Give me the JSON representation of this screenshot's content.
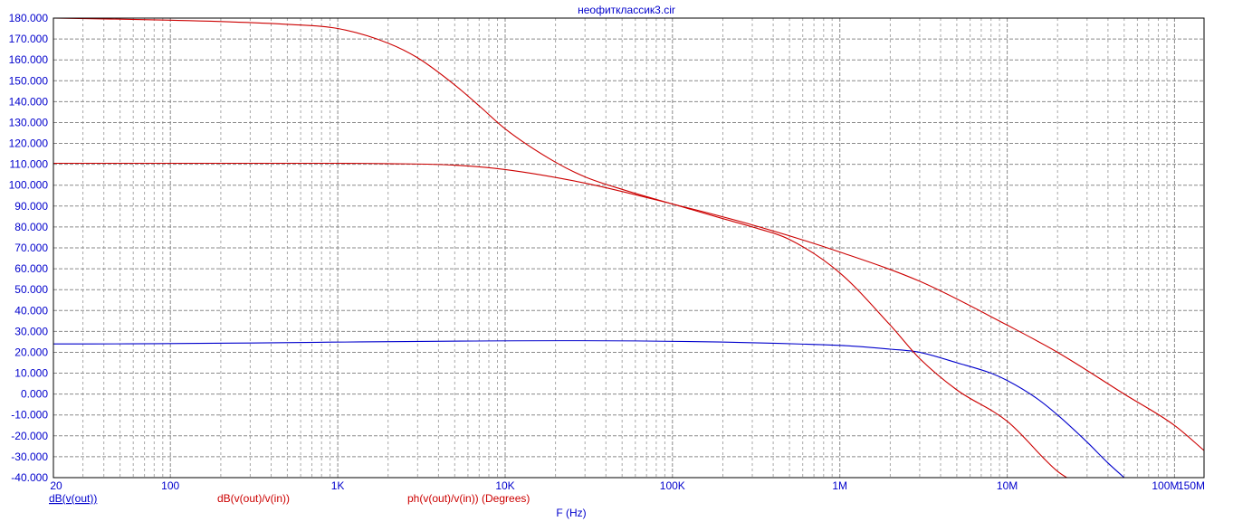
{
  "chart_data": {
    "type": "line",
    "title": "неофитклассик3.cir",
    "xlabel": "F (Hz)",
    "x_scale": "log",
    "xlim": [
      20,
      150000000
    ],
    "ylim": [
      -40,
      180
    ],
    "grid": true,
    "y_ticks": [
      "-40.000",
      "-30.000",
      "-20.000",
      "-10.000",
      "0.000",
      "10.000",
      "20.000",
      "30.000",
      "40.000",
      "50.000",
      "60.000",
      "70.000",
      "80.000",
      "90.000",
      "100.000",
      "110.000",
      "120.000",
      "130.000",
      "140.000",
      "150.000",
      "160.000",
      "170.000",
      "180.000"
    ],
    "x_tick_labels": [
      {
        "value": 20,
        "label": "20"
      },
      {
        "value": 100,
        "label": "100"
      },
      {
        "value": 1000,
        "label": "1K"
      },
      {
        "value": 10000,
        "label": "10K"
      },
      {
        "value": 100000,
        "label": "100K"
      },
      {
        "value": 1000000,
        "label": "1M"
      },
      {
        "value": 10000000,
        "label": "10M"
      },
      {
        "value": 100000000,
        "label": "100M"
      },
      {
        "value": 150000000,
        "label": "150M"
      }
    ],
    "legend": [
      "dB(v(out))",
      "dB(v(out)/v(in))",
      "ph(v(out)/v(in)) (Degrees)"
    ],
    "colors": {
      "blue": "#0000cc",
      "red": "#cc0000",
      "title": "#0000cc",
      "axis_text": "#0000cc"
    },
    "series": [
      {
        "name": "dB(v(out))",
        "color": "#0000cc",
        "x": [
          20,
          1000000,
          2000000,
          3000000,
          5000000,
          8000000,
          10000000,
          15000000,
          20000000,
          30000000,
          40000000,
          50000000
        ],
        "y": [
          24,
          23.3,
          21.5,
          20,
          15,
          10,
          6.5,
          -2,
          -10,
          -23,
          -33,
          -40
        ]
      },
      {
        "name": "dB(v(out)/v(in))",
        "color": "#cc0000",
        "x": [
          20,
          1000,
          2000,
          5000,
          10000,
          30000,
          100000,
          300000,
          1000000,
          3000000,
          10000000,
          20000000,
          50000000,
          100000000,
          150000000
        ],
        "y": [
          110.5,
          110.5,
          110.3,
          109.6,
          107.5,
          101,
          91,
          81,
          68,
          54,
          33,
          20,
          0,
          -15,
          -27
        ]
      },
      {
        "name": "ph(v(out)/v(in)) (Degrees)",
        "color": "#cc0000",
        "x": [
          20,
          100,
          500,
          1000,
          2000,
          3000,
          5000,
          7000,
          10000,
          20000,
          30000,
          50000,
          100000,
          200000,
          300000,
          500000,
          1000000,
          2000000,
          3000000,
          5000000,
          10000000,
          20000000,
          25000000
        ],
        "y": [
          180,
          179,
          177,
          175,
          168,
          161,
          148,
          138,
          127,
          111,
          104,
          98,
          91,
          84,
          80,
          74,
          58,
          33,
          17,
          2,
          -13,
          -37,
          -42
        ]
      }
    ]
  }
}
